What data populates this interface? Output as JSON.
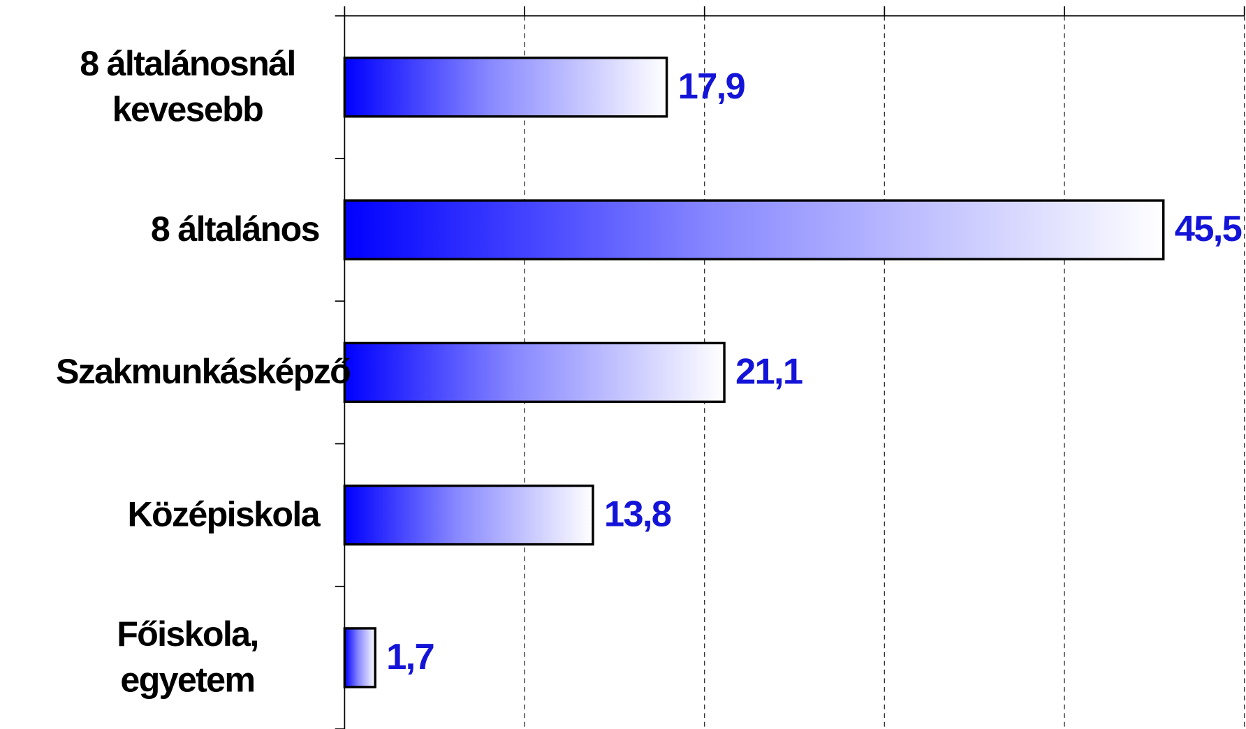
{
  "chart_data": {
    "type": "bar",
    "orientation": "horizontal",
    "categories": [
      "8 általánosnál kevesebb",
      "8 általános",
      "Szakmunkásképző",
      "Középiskola",
      "Főiskola, egyetem"
    ],
    "values": [
      17.9,
      45.5,
      21.1,
      13.8,
      1.7
    ],
    "value_labels": [
      "17,9",
      "45,5",
      "21,1",
      "13,8",
      "1,7"
    ],
    "color": "#0000ff",
    "xlim": [
      0,
      50
    ],
    "xticks": [
      0,
      10,
      20,
      30,
      40,
      50
    ],
    "grid": true
  }
}
